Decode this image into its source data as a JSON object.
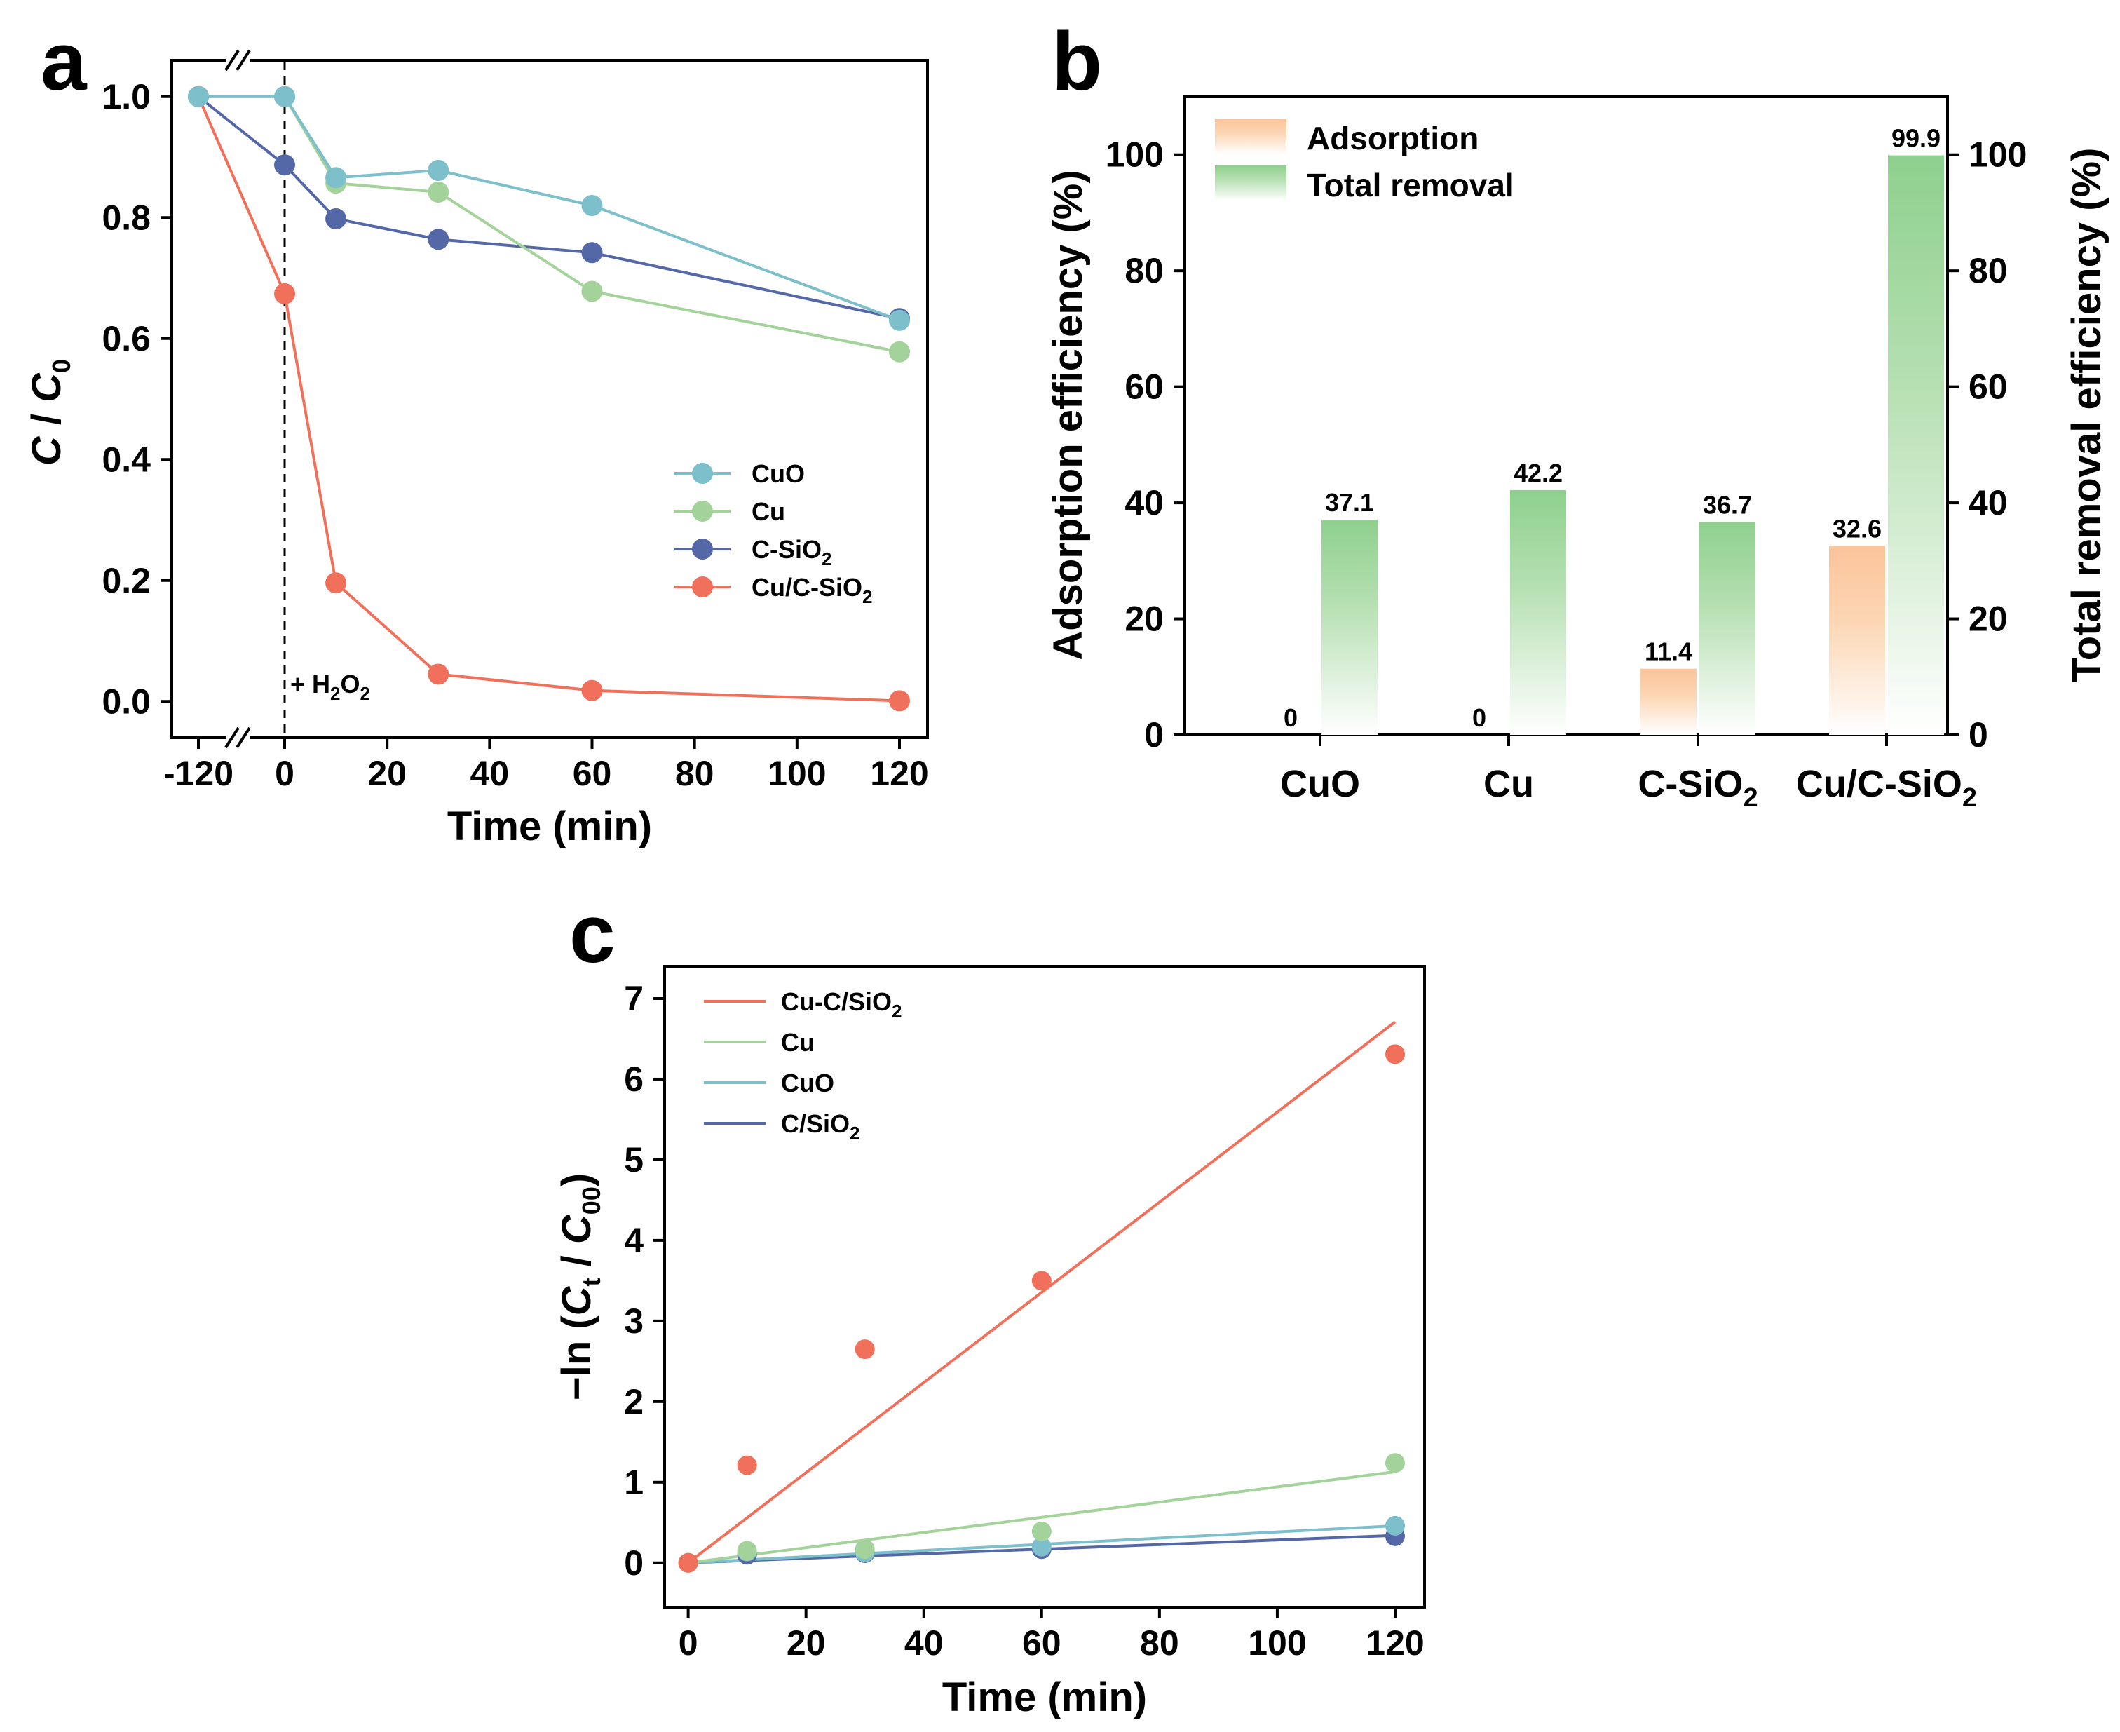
{
  "colors": {
    "CuO": "#7DBFCA",
    "Cu": "#A3D39A",
    "C-SiO2": "#5467A6",
    "Cu/C-SiO2": "#F1705B",
    "adsorption": "#FBC49A",
    "total_removal": "#8ED08E"
  },
  "chart_data": [
    {
      "panel": "a",
      "type": "line",
      "ylabel": "C / C0",
      "xlabel": "Time (min)",
      "x": [
        -120,
        0,
        10,
        30,
        60,
        120
      ],
      "x_ticks": [
        "-120",
        "0",
        "20",
        "40",
        "60",
        "80",
        "100",
        "120"
      ],
      "y_ticks": [
        "0.0",
        "0.2",
        "0.4",
        "0.6",
        "0.8",
        "1.0"
      ],
      "ylim": [
        -0.06,
        1.06
      ],
      "annotation": "+ H2O2",
      "series": [
        {
          "name": "CuO",
          "display": "CuO",
          "values": [
            1.0,
            1.0,
            0.866,
            0.878,
            0.82,
            0.63
          ]
        },
        {
          "name": "Cu",
          "display": "Cu",
          "values": [
            1.0,
            1.0,
            0.857,
            0.842,
            0.678,
            0.578
          ]
        },
        {
          "name": "C-SiO2",
          "display": "C-SiO",
          "sub": "2",
          "values": [
            1.0,
            0.887,
            0.798,
            0.764,
            0.742,
            0.633
          ]
        },
        {
          "name": "Cu/C-SiO2",
          "display": "Cu/C-SiO",
          "sub": "2",
          "values": [
            1.0,
            0.674,
            0.196,
            0.045,
            0.018,
            0.001
          ]
        }
      ]
    },
    {
      "panel": "b",
      "type": "bar",
      "categories": [
        "CuO",
        "Cu",
        "C-SiO2",
        "Cu/C-SiO2"
      ],
      "category_display": [
        {
          "main": "CuO",
          "sub": ""
        },
        {
          "main": "Cu",
          "sub": ""
        },
        {
          "main": "C-SiO",
          "sub": "2"
        },
        {
          "main": "Cu/C-SiO",
          "sub": "2"
        }
      ],
      "series": [
        {
          "name": "Adsorption",
          "values": [
            0,
            0,
            11.4,
            32.6
          ],
          "labels": [
            "0",
            "0",
            "11.4",
            "32.6"
          ]
        },
        {
          "name": "Total removal",
          "values": [
            37.1,
            42.2,
            36.7,
            99.9
          ],
          "labels": [
            "37.1",
            "42.2",
            "36.7",
            "99.9"
          ]
        }
      ],
      "ylabel_left": "Adsorption efficiency (%)",
      "ylabel_right": "Total removal efficiency (%)",
      "y_ticks": [
        "0",
        "20",
        "40",
        "60",
        "80",
        "100"
      ],
      "ylim": [
        0,
        110
      ]
    },
    {
      "panel": "c",
      "type": "scatter",
      "ylabel": "−ln (Ct / C00)",
      "xlabel": "Time (min)",
      "x_ticks": [
        "0",
        "20",
        "40",
        "60",
        "80",
        "100",
        "120"
      ],
      "y_ticks": [
        "0",
        "1",
        "2",
        "3",
        "4",
        "5",
        "6",
        "7"
      ],
      "xlim": [
        -4,
        125
      ],
      "ylim": [
        -0.55,
        7.4
      ],
      "series": [
        {
          "name": "Cu-C/SiO2",
          "display": "Cu-C/SiO",
          "sub": "2",
          "color_key": "Cu/C-SiO2",
          "x": [
            0,
            10,
            30,
            60,
            120
          ],
          "y": [
            0,
            1.21,
            2.65,
            3.5,
            6.31
          ],
          "fit": [
            0,
            6.71
          ]
        },
        {
          "name": "Cu",
          "display": "Cu",
          "sub": "",
          "color_key": "Cu",
          "x": [
            0,
            10,
            30,
            60,
            120
          ],
          "y": [
            0,
            0.15,
            0.17,
            0.39,
            1.24
          ],
          "fit": [
            0,
            1.13
          ]
        },
        {
          "name": "CuO",
          "display": "CuO",
          "sub": "",
          "color_key": "CuO",
          "x": [
            0,
            10,
            30,
            60,
            120
          ],
          "y": [
            0,
            0.14,
            0.13,
            0.2,
            0.46
          ],
          "fit": [
            0,
            0.46
          ]
        },
        {
          "name": "C/SiO2",
          "display": "C/SiO",
          "sub": "2",
          "color_key": "C-SiO2",
          "x": [
            0,
            10,
            30,
            60,
            120
          ],
          "y": [
            0,
            0.1,
            0.12,
            0.17,
            0.33
          ],
          "fit": [
            0,
            0.34
          ]
        }
      ]
    }
  ],
  "panels": {
    "a": {
      "letter": "a",
      "ylabel_main": "C",
      "ylabel_sep": " / ",
      "ylabel_c": "C",
      "ylabel_sub": "0",
      "xlabel": "Time (min)",
      "annot_main": "+ H",
      "annot_sub": "2",
      "annot_o": "O",
      "annot_sub2": "2"
    },
    "b": {
      "letter": "b",
      "ylabel_left": "Adsorption efficiency (%)",
      "ylabel_right": "Total removal efficiency (%)",
      "legend_adsorption": "Adsorption",
      "legend_total": "Total removal"
    },
    "c": {
      "letter": "c",
      "ylabel_pre": "−ln (",
      "ylabel_c": "C",
      "ylabel_t": "t",
      "ylabel_mid": " / ",
      "ylabel_c2": "C",
      "ylabel_00": "00",
      "ylabel_post": ")",
      "xlabel": "Time (min)"
    }
  }
}
